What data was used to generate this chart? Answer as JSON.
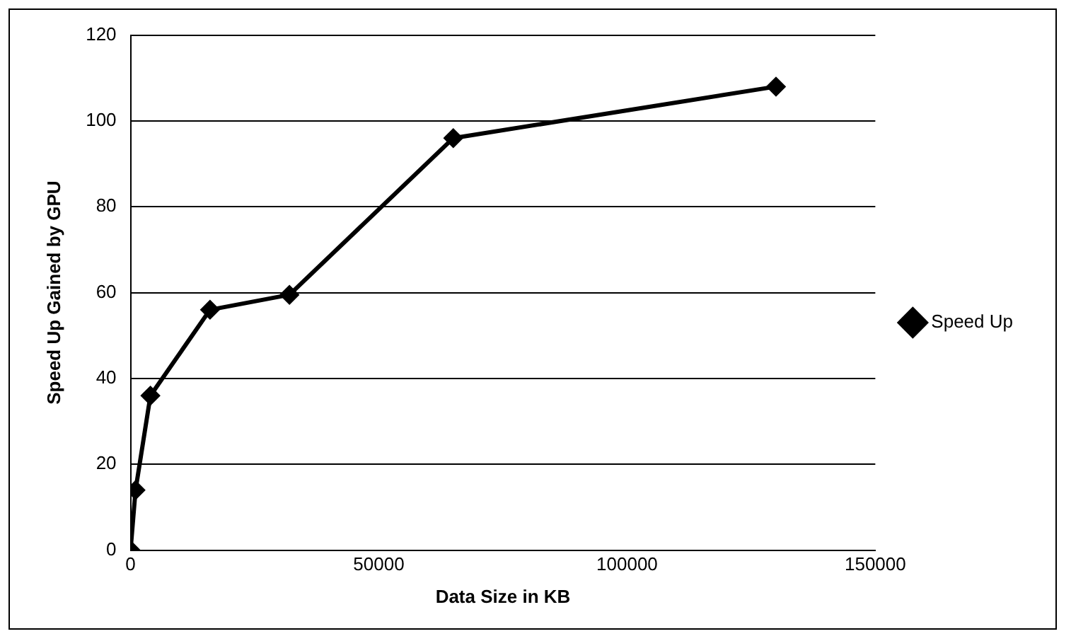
{
  "chart_data": {
    "type": "line",
    "xlabel": "Data Size in KB",
    "ylabel": "Speed Up Gained by GPU",
    "x": [
      0,
      1000,
      4000,
      16000,
      32000,
      65000,
      130000
    ],
    "series": [
      {
        "name": "Speed Up",
        "color": "#000000",
        "values": [
          0,
          14,
          36,
          56,
          59.5,
          96,
          108
        ]
      }
    ],
    "xlim": [
      0,
      150000
    ],
    "xticks": [
      0,
      50000,
      100000,
      150000
    ],
    "ylim": [
      0,
      120
    ],
    "yticks": [
      0,
      20,
      40,
      60,
      80,
      100,
      120
    ],
    "grid": "y",
    "legend": "right",
    "marker": "diamond",
    "line_style": "solid"
  }
}
